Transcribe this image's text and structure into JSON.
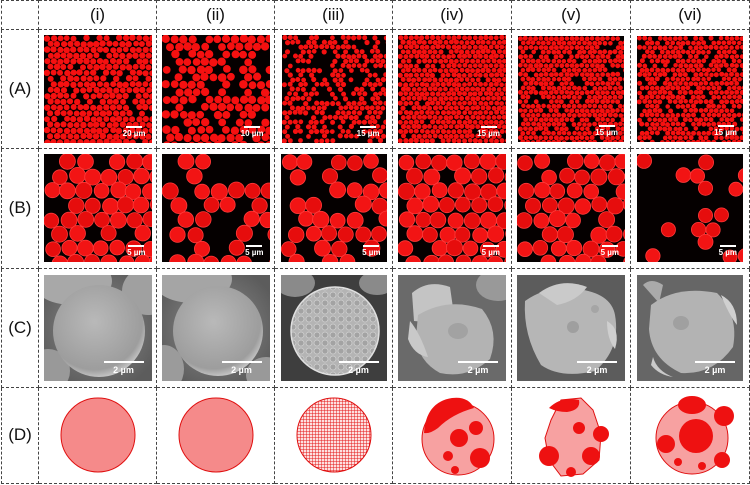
{
  "columns": [
    "(i)",
    "(ii)",
    "(iii)",
    "(iv)",
    "(v)",
    "(vi)"
  ],
  "rows": [
    "(A)",
    "(B)",
    "(C)",
    "(D)"
  ],
  "row_a_scale": [
    "20 µm",
    "10 µm",
    "15 µm",
    "15 µm",
    "15 µm",
    "15 µm"
  ],
  "row_b_scale": [
    "5 µm",
    "5 µm",
    "5 µm",
    "5 µm",
    "5 µm",
    "5 µm"
  ],
  "row_c_scale": [
    "2 µm",
    "2 µm",
    "2 µm",
    "2 µm",
    "2 µm",
    "2 µm"
  ],
  "colors": {
    "particle_red": "#f51010",
    "schematic_fill": "#f58a8a",
    "schematic_dark": "#ee1111",
    "sem_gray": "#9a9a9a"
  }
}
